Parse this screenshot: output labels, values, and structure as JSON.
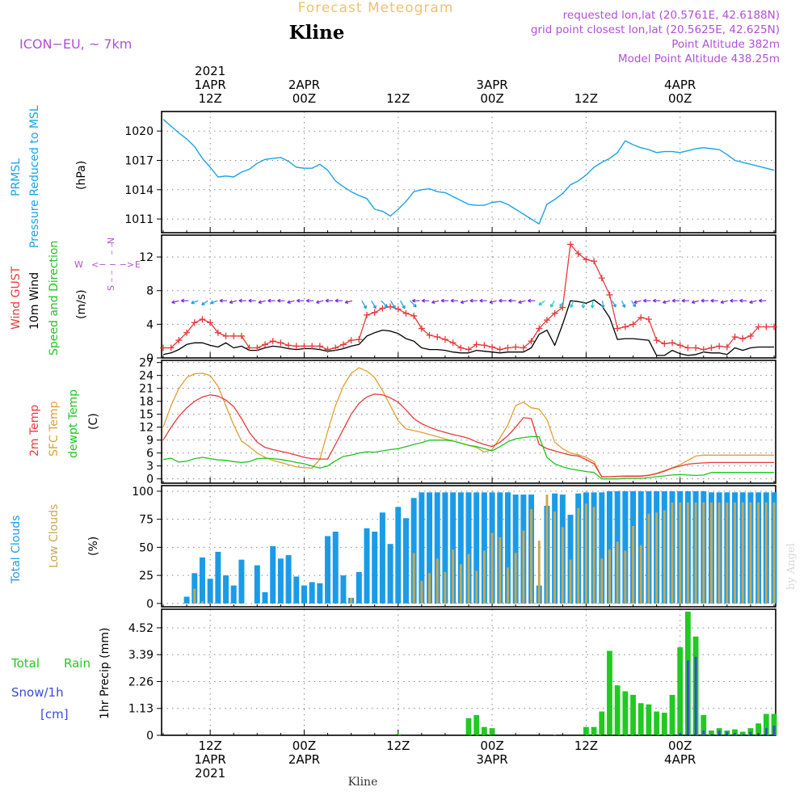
{
  "header": {
    "title": "Forecast Meteogram",
    "location": "Kline",
    "model": "ICON−EU, ~ 7km",
    "requested": "requested lon,lat (20.5761E, 42.6188N)",
    "grid_point": "grid point closest lon,lat (20.5625E, 42.625N)",
    "point_altitude": "Point Altitude 382m",
    "model_altitude": "Model Point Altitude 438.25m",
    "footer_location": "Kline",
    "credit": "by Angel",
    "compass": {
      "n": "N",
      "s": "S",
      "w": "W",
      "e": "E",
      "arrows": "<− − −>",
      "stem": "− −"
    }
  },
  "colors": {
    "pressure": "#1aa3e8",
    "gust": "#e8393a",
    "wind": "#000000",
    "wind_arrows": "#7a2ad8",
    "purple_text": "#b14fd8",
    "temp": "#e8393a",
    "sfc_temp": "#e0a030",
    "dewpt": "#1fc41f",
    "total_clouds": "#1a9be8",
    "low_clouds": "#c9a84f",
    "rain": "#22c922",
    "snow": "#3a4ad8",
    "title_orange": "#f0c070"
  },
  "chart_data": {
    "type": "line",
    "time": {
      "start": "2021-04-01 06Z",
      "step_hours": 1,
      "points": 79,
      "top_ticks": [
        {
          "hour": 6,
          "lines": [
            "2021",
            "1APR",
            "12Z"
          ]
        },
        {
          "hour": 18,
          "lines": [
            "2APR",
            "00Z"
          ]
        },
        {
          "hour": 30,
          "lines": [
            "12Z"
          ]
        },
        {
          "hour": 42,
          "lines": [
            "3APR",
            "00Z"
          ]
        },
        {
          "hour": 54,
          "lines": [
            "12Z"
          ]
        },
        {
          "hour": 66,
          "lines": [
            "4APR",
            "00Z"
          ]
        }
      ],
      "bottom_ticks": [
        {
          "hour": 6,
          "lines": [
            "12Z",
            "1APR",
            "2021"
          ]
        },
        {
          "hour": 18,
          "lines": [
            "00Z",
            "2APR"
          ]
        },
        {
          "hour": 30,
          "lines": [
            "12Z"
          ]
        },
        {
          "hour": 42,
          "lines": [
            "00Z",
            "3APR"
          ]
        },
        {
          "hour": 54,
          "lines": [
            "12Z"
          ]
        },
        {
          "hour": 66,
          "lines": [
            "00Z",
            "4APR"
          ]
        }
      ]
    },
    "pressure": {
      "label_lines": [
        "PRMSL",
        "Pressure Reduced to MSL"
      ],
      "unit": "(hPa)",
      "yticks": [
        1011,
        1014,
        1017,
        1020
      ],
      "ylim": [
        1009.6,
        1022.0
      ],
      "values": [
        1021.2,
        1020.5,
        1019.8,
        1019.2,
        1018.4,
        1017.2,
        1016.3,
        1015.3,
        1015.4,
        1015.3,
        1015.8,
        1016.1,
        1016.7,
        1017.1,
        1017.2,
        1017.3,
        1016.9,
        1016.3,
        1016.2,
        1016.2,
        1016.6,
        1016.0,
        1014.9,
        1014.3,
        1013.8,
        1013.4,
        1013.1,
        1012.0,
        1011.8,
        1011.3,
        1012.0,
        1012.8,
        1013.8,
        1014.0,
        1014.1,
        1013.8,
        1013.7,
        1013.3,
        1012.9,
        1012.5,
        1012.4,
        1012.4,
        1012.7,
        1012.8,
        1012.5,
        1012.0,
        1011.5,
        1011.0,
        1010.5,
        1012.5,
        1013.0,
        1013.6,
        1014.5,
        1014.9,
        1015.5,
        1016.3,
        1016.8,
        1017.2,
        1017.8,
        1019.0,
        1018.6,
        1018.3,
        1018.1,
        1017.8,
        1017.9,
        1017.9,
        1017.8,
        1018.0,
        1018.2,
        1018.3,
        1018.2,
        1018.1,
        1017.6,
        1017.0,
        1016.8,
        1016.6,
        1016.4,
        1016.2,
        1016.0
      ]
    },
    "wind": {
      "label_lines": [
        "Wind GUST",
        "10m Wind",
        "Speed and Direction"
      ],
      "unit": "(m/s)",
      "yticks": [
        0,
        4,
        8,
        12
      ],
      "ylim": [
        0,
        14.6
      ],
      "gust": [
        1.2,
        1.2,
        2.1,
        3.0,
        4.2,
        4.6,
        4.2,
        3.0,
        2.6,
        2.6,
        2.6,
        1.2,
        1.2,
        1.6,
        2.0,
        1.8,
        1.5,
        1.4,
        1.4,
        1.4,
        1.4,
        1.0,
        1.2,
        1.6,
        2.1,
        2.2,
        5.1,
        5.4,
        5.9,
        6.1,
        5.8,
        5.3,
        5.0,
        3.5,
        2.7,
        2.5,
        2.2,
        1.8,
        1.2,
        1.0,
        1.6,
        1.5,
        1.3,
        1.0,
        1.2,
        1.3,
        1.2,
        2.0,
        3.5,
        4.5,
        5.3,
        6.0,
        13.5,
        12.4,
        11.7,
        11.5,
        9.5,
        7.5,
        3.5,
        3.7,
        4.0,
        4.8,
        4.6,
        2.1,
        1.7,
        1.8,
        1.5,
        1.2,
        1.2,
        1.0,
        1.2,
        1.4,
        1.3,
        2.5,
        2.3,
        2.6,
        3.7,
        3.7,
        3.7
      ],
      "speed": [
        0.4,
        0.6,
        1.0,
        1.6,
        1.8,
        1.8,
        1.5,
        1.3,
        1.8,
        1.2,
        1.4,
        0.9,
        0.9,
        1.2,
        1.4,
        1.3,
        1.1,
        1.0,
        1.1,
        1.1,
        1.0,
        0.8,
        0.9,
        1.1,
        1.4,
        1.6,
        2.6,
        3.0,
        3.3,
        3.2,
        2.9,
        2.3,
        2.0,
        1.2,
        1.0,
        1.0,
        0.9,
        0.7,
        0.6,
        0.6,
        0.9,
        0.8,
        0.7,
        0.6,
        0.7,
        0.7,
        0.7,
        1.2,
        2.8,
        3.3,
        1.5,
        4.0,
        6.8,
        6.7,
        6.5,
        6.9,
        6.2,
        4.8,
        2.2,
        2.3,
        2.3,
        2.2,
        2.1,
        0.3,
        0.3,
        0.9,
        0.5,
        0.3,
        0.4,
        0.7,
        0.6,
        0.6,
        0.4,
        1.2,
        0.9,
        1.2,
        1.3,
        1.3,
        1.3
      ],
      "arrows": {
        "count": 62,
        "direction_note": "mostly easterly (pointing west), northeast around midday"
      }
    },
    "temperature": {
      "label_lines": [
        "2m Temp",
        "SFC Temp",
        "dewpt Temp"
      ],
      "unit": "(C)",
      "yticks": [
        0,
        3,
        6,
        9,
        12,
        15,
        18,
        21,
        24,
        27
      ],
      "ylim": [
        -1,
        27.5
      ],
      "temp_2m": [
        9.0,
        12.0,
        14.5,
        16.5,
        18.0,
        19.0,
        19.5,
        19.2,
        18.3,
        16.8,
        14.0,
        10.8,
        8.5,
        7.3,
        6.8,
        6.4,
        6.0,
        5.5,
        5.0,
        4.7,
        4.6,
        4.6,
        8.0,
        11.5,
        15.0,
        17.5,
        19.0,
        19.7,
        19.5,
        18.8,
        17.8,
        16.0,
        14.0,
        12.8,
        12.0,
        11.3,
        10.8,
        10.3,
        9.9,
        9.4,
        8.6,
        8.0,
        7.5,
        8.5,
        10.0,
        12.0,
        14.2,
        14.0,
        8.0,
        7.0,
        6.5,
        6.0,
        5.5,
        5.3,
        4.5,
        3.5,
        0.5,
        0.5,
        0.6,
        0.6,
        0.6,
        0.6,
        0.8,
        1.2,
        1.8,
        2.5,
        3.0,
        3.4,
        3.6,
        3.7,
        3.8,
        3.8,
        3.8,
        3.8,
        3.8,
        3.8,
        3.8,
        3.8,
        3.8
      ],
      "sfc_temp": [
        12.0,
        17.0,
        21.0,
        23.5,
        24.4,
        24.5,
        24.0,
        21.5,
        17.0,
        12.5,
        8.8,
        7.5,
        6.0,
        5.0,
        4.3,
        3.8,
        3.3,
        2.8,
        2.6,
        2.5,
        4.5,
        11.0,
        17.0,
        21.5,
        24.5,
        25.8,
        25.0,
        23.5,
        20.5,
        17.0,
        13.5,
        11.6,
        11.2,
        10.8,
        10.3,
        9.8,
        9.3,
        8.8,
        8.3,
        7.8,
        7.3,
        6.2,
        6.8,
        9.5,
        12.5,
        17.0,
        17.8,
        16.5,
        16.2,
        13.8,
        8.5,
        7.0,
        6.0,
        5.6,
        5.0,
        4.0,
        0.4,
        0.5,
        0.6,
        0.7,
        0.7,
        0.7,
        0.9,
        1.3,
        1.9,
        2.6,
        3.3,
        4.3,
        5.3,
        5.5,
        5.5,
        5.5,
        5.5,
        5.5,
        5.5,
        5.5,
        5.5,
        5.5,
        5.5
      ],
      "dewpt": [
        4.5,
        4.8,
        3.9,
        4.1,
        4.7,
        5.0,
        4.7,
        4.4,
        4.3,
        4.0,
        3.8,
        4.0,
        4.7,
        4.8,
        4.7,
        4.5,
        4.2,
        3.8,
        3.5,
        3.0,
        2.5,
        3.0,
        4.2,
        5.2,
        5.5,
        6.0,
        6.3,
        6.2,
        6.5,
        6.8,
        7.0,
        7.5,
        8.0,
        8.4,
        9.0,
        9.0,
        9.0,
        8.8,
        8.3,
        7.8,
        7.5,
        7.0,
        6.5,
        7.5,
        8.6,
        9.3,
        9.6,
        9.8,
        9.8,
        5.0,
        3.5,
        2.8,
        2.3,
        2.0,
        1.7,
        1.5,
        0.0,
        0.0,
        0.0,
        0.1,
        0.1,
        0.1,
        0.3,
        0.5,
        0.7,
        0.9,
        1.0,
        0.9,
        0.8,
        0.9,
        1.5,
        1.5,
        1.5,
        1.5,
        1.5,
        1.5,
        1.5,
        1.5,
        1.5
      ]
    },
    "clouds": {
      "type": "bar",
      "label_lines": [
        "Total Clouds",
        "Low Clouds"
      ],
      "unit": "(%)",
      "yticks": [
        0,
        25,
        50,
        75,
        100
      ],
      "ylim": [
        -3,
        105
      ],
      "total": [
        0,
        0,
        0,
        6,
        27,
        41,
        22,
        46,
        25,
        16,
        39,
        0,
        34,
        10,
        51,
        40,
        43,
        24,
        16,
        19,
        18,
        60,
        64,
        25,
        5,
        28,
        67,
        64,
        81,
        53,
        86,
        76,
        94,
        99,
        99,
        99,
        99,
        99,
        99,
        99,
        99,
        99,
        99,
        99,
        99,
        97,
        97,
        97,
        16,
        87,
        98,
        97,
        79,
        98,
        99,
        99,
        99,
        100,
        100,
        100,
        100,
        100,
        100,
        100,
        100,
        100,
        100,
        100,
        100,
        100,
        99,
        99,
        99,
        99,
        99,
        99,
        99,
        99,
        99
      ],
      "low": [
        0,
        0,
        0,
        0,
        13,
        2,
        1,
        0,
        0,
        0,
        0,
        0,
        0,
        0,
        0,
        0,
        0,
        0,
        0,
        0,
        0,
        0,
        0,
        0,
        5,
        0,
        0,
        0,
        0,
        0,
        0,
        0,
        45,
        20,
        27,
        40,
        28,
        48,
        35,
        44,
        29,
        47,
        63,
        59,
        32,
        45,
        65,
        84,
        56,
        97,
        82,
        68,
        39,
        85,
        89,
        86,
        40,
        48,
        55,
        47,
        69,
        52,
        80,
        81,
        83,
        90,
        90,
        90,
        90,
        90,
        90,
        90,
        90,
        90,
        90,
        90,
        90,
        90,
        90
      ]
    },
    "precip": {
      "type": "bar",
      "label_lines": [
        "Total",
        "Rain",
        "Snow/1h",
        "[cm]"
      ],
      "unit": "1hr Precip (mm)",
      "yticks": [
        0,
        1.13,
        2.26,
        3.39,
        4.52
      ],
      "ylim": [
        0,
        5.3
      ],
      "rain": [
        0,
        0,
        0,
        0,
        0,
        0,
        0,
        0,
        0,
        0,
        0,
        0,
        0,
        0,
        0,
        0,
        0,
        0,
        0,
        0,
        0,
        0,
        0,
        0,
        0,
        0,
        0,
        0,
        0,
        0,
        0.05,
        0,
        0,
        0,
        0,
        0,
        0,
        0,
        0,
        0.72,
        0.85,
        0.35,
        0.3,
        0,
        0,
        0,
        0,
        0,
        0,
        0,
        0.02,
        0,
        0,
        0,
        0.35,
        0.35,
        1.0,
        3.55,
        2.1,
        1.85,
        1.7,
        1.35,
        1.3,
        1.0,
        0.95,
        1.7,
        3.7,
        5.2,
        4.15,
        0.85,
        0.2,
        0.3,
        0.2,
        0.25,
        0.15,
        0.3,
        0.5,
        0.9,
        0.9
      ],
      "snow": [
        0,
        0,
        0,
        0,
        0,
        0,
        0,
        0,
        0,
        0,
        0,
        0,
        0,
        0,
        0,
        0,
        0,
        0,
        0,
        0,
        0,
        0,
        0,
        0,
        0,
        0,
        0,
        0,
        0,
        0,
        0,
        0,
        0,
        0,
        0,
        0,
        0,
        0,
        0,
        0,
        0,
        0,
        0,
        0,
        0,
        0,
        0,
        0,
        0,
        0,
        0,
        0,
        0,
        0,
        0,
        0,
        0,
        0,
        0,
        0,
        0,
        0,
        0,
        0,
        0,
        0,
        0.1,
        3.15,
        3.3,
        0.2,
        0.05,
        0.2,
        0.15,
        0.1,
        0.05,
        0.15,
        0.1,
        0.3,
        0.4
      ]
    }
  }
}
